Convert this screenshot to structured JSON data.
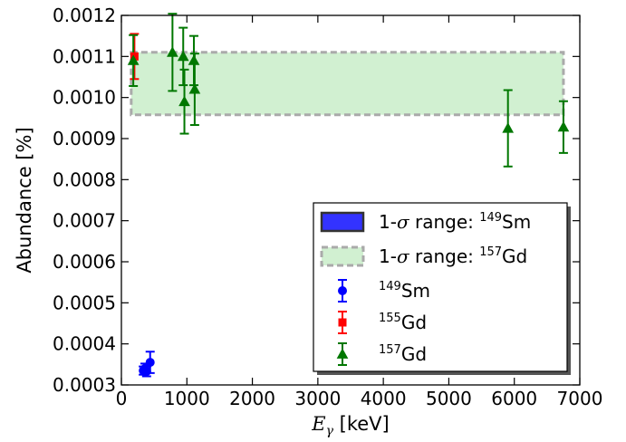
{
  "chart_data": {
    "type": "scatter",
    "xlabel": "E_γ [keV]",
    "ylabel": "Abundance [%]",
    "xlim": [
      0,
      7000
    ],
    "ylim": [
      0.0003,
      0.0012
    ],
    "grid": false,
    "legend_position": "bottom-right",
    "x_ticks": [
      "0",
      "1000",
      "2000",
      "3000",
      "4000",
      "5000",
      "6000",
      "7000"
    ],
    "y_ticks": [
      "0.0003",
      "0.0004",
      "0.0005",
      "0.0006",
      "0.0007",
      "0.0008",
      "0.0009",
      "0.0010",
      "0.0011",
      "0.0012"
    ],
    "bands": [
      {
        "name": "1-σ range: 149Sm",
        "color": "#3333ff",
        "border": "#333333",
        "x_range": [],
        "y_range": []
      },
      {
        "name": "1-σ range: 157Gd",
        "color": "#99dd99",
        "border": "#aaaaaa",
        "x_range": [
          150,
          6750
        ],
        "y_range": [
          0.000958,
          0.00111
        ]
      }
    ],
    "series": [
      {
        "name": "149Sm",
        "marker": "circle",
        "color": "#0000ff",
        "points": [
          {
            "x": 334,
            "y": 0.000335,
            "err": 1e-05
          },
          {
            "x": 360,
            "y": 0.00034,
            "err": 1.2e-05
          },
          {
            "x": 385,
            "y": 0.000333,
            "err": 1.2e-05
          },
          {
            "x": 439,
            "y": 0.000355,
            "err": 2.6e-05
          }
        ]
      },
      {
        "name": "155Gd",
        "marker": "square",
        "color": "#ff0000",
        "points": [
          {
            "x": 199,
            "y": 0.0011,
            "err": 5.5e-05
          }
        ]
      },
      {
        "name": "157Gd",
        "marker": "triangle",
        "color": "#007700",
        "points": [
          {
            "x": 182,
            "y": 0.00109,
            "err": 6.2e-05
          },
          {
            "x": 780,
            "y": 0.00111,
            "err": 9.4e-05
          },
          {
            "x": 944,
            "y": 0.0011,
            "err": 7e-05
          },
          {
            "x": 962,
            "y": 0.00099,
            "err": 7.8e-05
          },
          {
            "x": 1107,
            "y": 0.00109,
            "err": 6e-05
          },
          {
            "x": 1119,
            "y": 0.00102,
            "err": 8.7e-05
          },
          {
            "x": 5903,
            "y": 0.000925,
            "err": 9.3e-05
          },
          {
            "x": 6750,
            "y": 0.000928,
            "err": 6.3e-05
          }
        ]
      }
    ],
    "legend": {
      "entries": [
        {
          "prefix": "1-",
          "sigma": "σ",
          "middle": " range: ",
          "mass": "149",
          "element": "Sm"
        },
        {
          "prefix": "1-",
          "sigma": "σ",
          "middle": " range: ",
          "mass": "157",
          "element": "Gd"
        },
        {
          "prefix": "",
          "sigma": "",
          "middle": "",
          "mass": "149",
          "element": "Sm"
        },
        {
          "prefix": "",
          "sigma": "",
          "middle": "",
          "mass": "155",
          "element": "Gd"
        },
        {
          "prefix": "",
          "sigma": "",
          "middle": "",
          "mass": "157",
          "element": "Gd"
        }
      ]
    },
    "xlabel_parts": {
      "symbol": "E",
      "subscript": "γ",
      "unit": " [keV]"
    }
  }
}
